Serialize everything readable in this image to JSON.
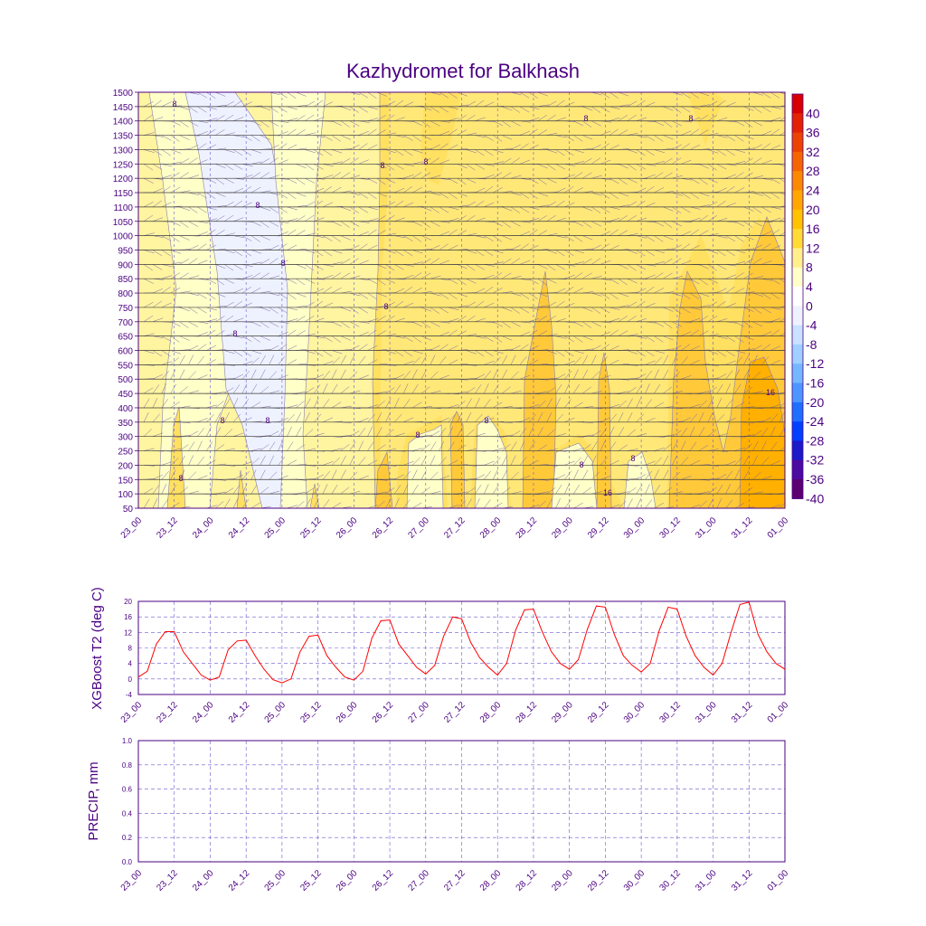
{
  "title": "Kazhydromet for Balkhash",
  "colors": {
    "axis": "#4b0082",
    "t2_line": "#ff0000",
    "grid": "#6a5acd"
  },
  "chart_data": [
    {
      "type": "heatmap",
      "name": "temperature cross-section",
      "title": "Kazhydromet for Balkhash",
      "x_tick_labels": [
        "23_00",
        "23_12",
        "24_00",
        "24_12",
        "25_00",
        "25_12",
        "26_00",
        "26_12",
        "27_00",
        "27_12",
        "28_00",
        "28_12",
        "29_00",
        "29_12",
        "30_00",
        "30_12",
        "31_00",
        "31_12",
        "01_00"
      ],
      "y_tick_labels": [
        "1500",
        "1450",
        "1400",
        "1350",
        "1300",
        "1250",
        "1200",
        "1150",
        "1100",
        "1050",
        "1000",
        "950",
        "900",
        "850",
        "800",
        "750",
        "700",
        "650",
        "600",
        "550",
        "500",
        "450",
        "400",
        "350",
        "300",
        "250",
        "200",
        "150",
        "100",
        "50"
      ],
      "ylim": [
        50,
        1500
      ],
      "colorbar_labels": [
        "40",
        "36",
        "32",
        "28",
        "24",
        "20",
        "16",
        "12",
        "8",
        "4",
        "0",
        "-4",
        "-8",
        "-12",
        "-16",
        "-20",
        "-24",
        "-28",
        "-32",
        "-36",
        "-40"
      ],
      "colorbar_colors": [
        "#d70000",
        "#e22200",
        "#ec4400",
        "#f56600",
        "#fb8a00",
        "#ffa800",
        "#ffc400",
        "#ffdb33",
        "#fff08a",
        "#ffffc8",
        "#ffffff",
        "#eef2ff",
        "#c8e2ff",
        "#9fd0ff",
        "#74b7ff",
        "#4c97ff",
        "#1f6fff",
        "#0040ff",
        "#1a1ac8",
        "#4a0ba0",
        "#5a0070"
      ],
      "contour_labels": [
        "8",
        "8",
        "8",
        "8",
        "8",
        "8",
        "8",
        "8",
        "8",
        "8",
        "8",
        "8",
        "8",
        "8",
        "8",
        "8",
        "16",
        "16"
      ]
    },
    {
      "type": "line",
      "name": "t2",
      "ylabel": "XGBoost T2 (deg C)",
      "x_tick_labels": [
        "23_00",
        "23_12",
        "24_00",
        "24_12",
        "25_00",
        "25_12",
        "26_00",
        "26_12",
        "27_00",
        "27_12",
        "28_00",
        "28_12",
        "29_00",
        "29_12",
        "30_00",
        "30_12",
        "31_00",
        "31_12",
        "01_00"
      ],
      "y_tick_labels": [
        "20",
        "16",
        "12",
        "8",
        "4",
        "0",
        "-4"
      ],
      "ylim": [
        -4,
        20
      ],
      "series": [
        {
          "values": [
            0.5,
            2,
            9,
            12.2,
            12.2,
            7,
            4,
            1,
            -0.3,
            0.5,
            7.5,
            9.8,
            10,
            6,
            2.5,
            -0.2,
            -1,
            0,
            7,
            11,
            11.3,
            6,
            3,
            0.5,
            -0.3,
            2,
            10.5,
            15,
            15.2,
            9,
            6,
            3,
            1.3,
            3.5,
            11,
            16,
            15.5,
            9.5,
            5.5,
            3,
            1,
            4,
            12.5,
            17.8,
            18,
            12,
            7,
            4,
            2.5,
            5,
            12.8,
            18.8,
            18.5,
            11.5,
            6,
            3.5,
            1.8,
            4,
            12.5,
            18.5,
            18,
            11,
            6,
            3,
            1,
            4,
            12,
            19.2,
            19.8,
            11.5,
            7,
            4,
            2.5
          ]
        }
      ]
    },
    {
      "type": "line",
      "name": "precip",
      "ylabel": "PRECIP, mm",
      "x_tick_labels": [
        "23_00",
        "23_12",
        "24_00",
        "24_12",
        "25_00",
        "25_12",
        "26_00",
        "26_12",
        "27_00",
        "27_12",
        "28_00",
        "28_12",
        "29_00",
        "29_12",
        "30_00",
        "30_12",
        "31_00",
        "31_12",
        "01_00"
      ],
      "y_tick_labels": [
        "1.0",
        "0.8",
        "0.6",
        "0.4",
        "0.2",
        "0.0"
      ],
      "ylim": [
        0,
        1
      ],
      "series": []
    }
  ]
}
